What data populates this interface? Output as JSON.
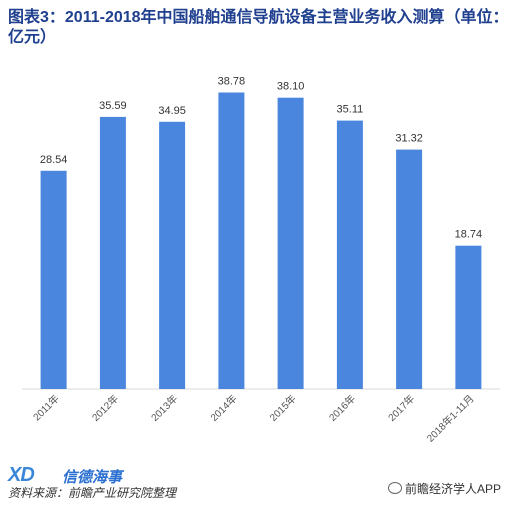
{
  "title": "图表3：2011-2018年中国船舶通信导航设备主营业务收入测算（单位：亿元）",
  "colors": {
    "bar": "#4a86de",
    "title": "#1f3f8f",
    "axis": "#d9d9d9"
  },
  "chart_data": {
    "type": "bar",
    "categories": [
      "2011年",
      "2012年",
      "2013年",
      "2014年",
      "2015年",
      "2016年",
      "2017年",
      "2018年1-11月"
    ],
    "values": [
      28.54,
      35.59,
      34.95,
      38.78,
      38.1,
      35.11,
      31.32,
      18.74
    ],
    "value_labels": [
      "28.54",
      "35.59",
      "34.95",
      "38.78",
      "38.10",
      "35.11",
      "31.32",
      "18.74"
    ],
    "title": "图表3：2011-2018年中国船舶通信导航设备主营业务收入测算（单位：亿元）",
    "xlabel": "",
    "ylabel": "",
    "ylim": [
      0,
      45
    ],
    "grid": false,
    "legend": "none"
  },
  "footer": {
    "logo_text": "XD",
    "logo_cn": "信德海事",
    "source": "资料来源：前瞻产业研究院整理",
    "wechat": "前瞻经济学人APP"
  }
}
